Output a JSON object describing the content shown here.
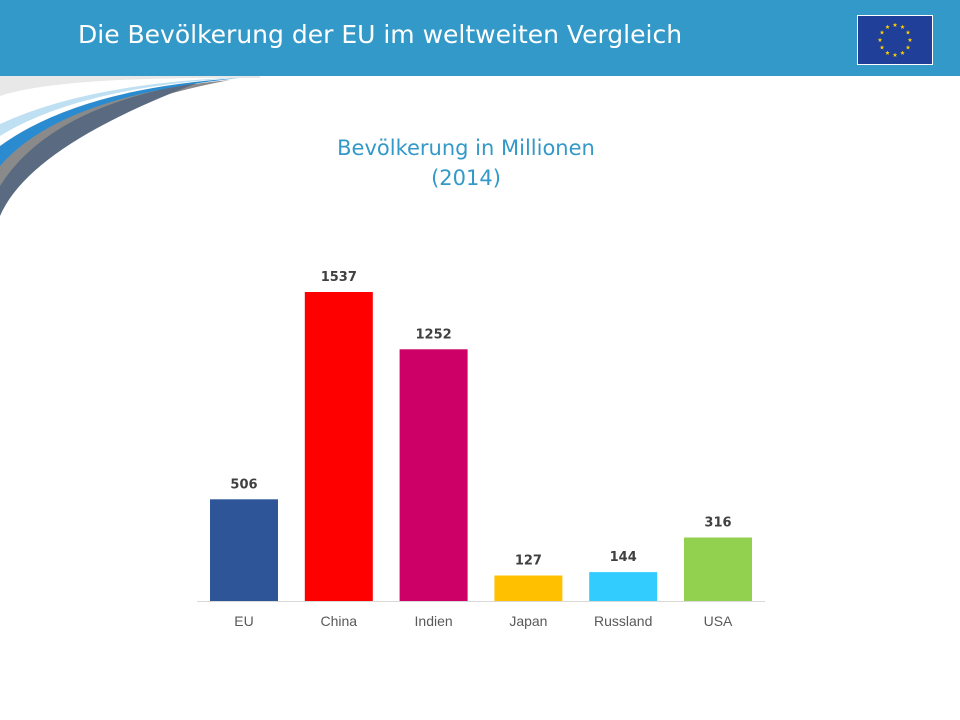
{
  "header": {
    "title": "Die Bevölkerung der EU im weltweiten Vergleich"
  },
  "flag": {
    "icon": "eu-flag-icon",
    "background": "#1f3f99",
    "star_color": "#ffcc00",
    "stars": 12
  },
  "colors": {
    "header_bg": "#3399c8",
    "title_text": "#3399c8"
  },
  "chart_data": {
    "type": "bar",
    "title": "Bevölkerung in Millionen",
    "subtitle": "(2014)",
    "categories": [
      "EU",
      "China",
      "Indien",
      "Japan",
      "Russland",
      "USA"
    ],
    "values": [
      506,
      1537,
      1252,
      127,
      144,
      316
    ],
    "colors": [
      "#2e5597",
      "#ff0000",
      "#cc0066",
      "#ffc000",
      "#33ccff",
      "#92d050"
    ],
    "data_labels": true,
    "grid": false,
    "legend": "none",
    "ylim": [
      0,
      1537
    ]
  }
}
